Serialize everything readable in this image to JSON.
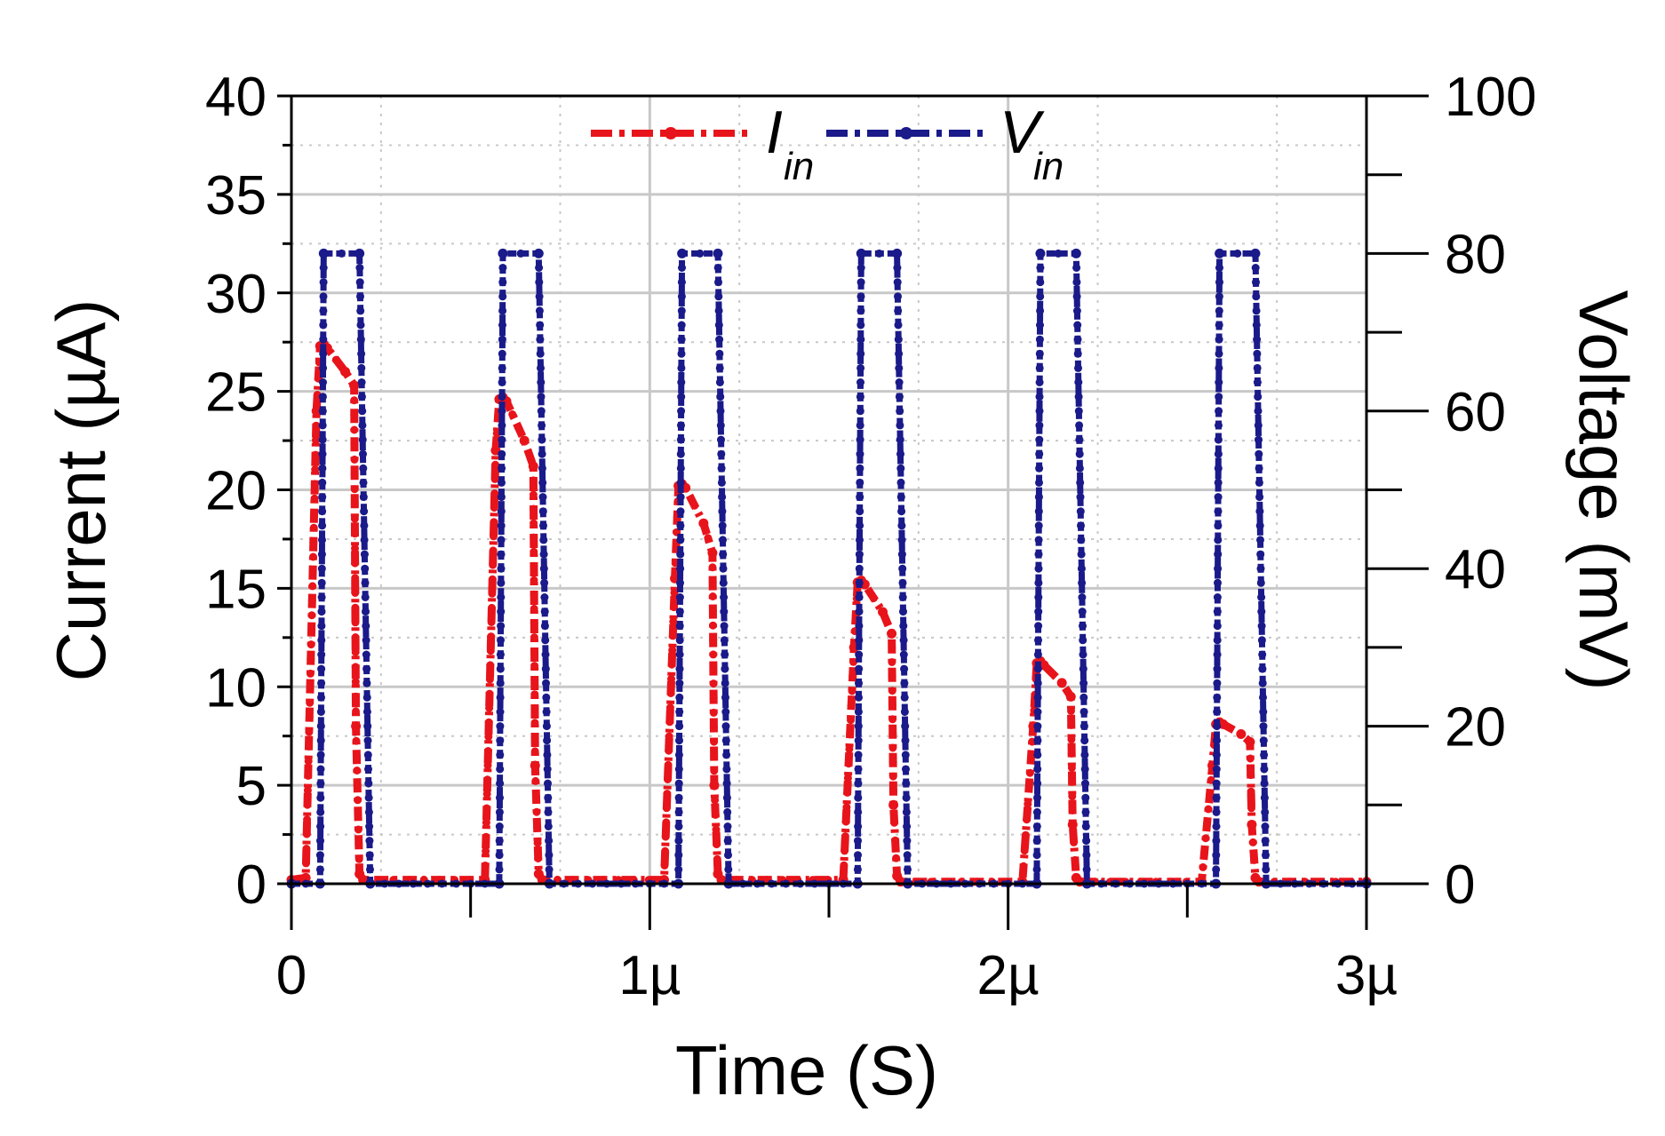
{
  "chart_data": {
    "type": "line",
    "xlabel": "Time (S)",
    "ylabel": "Current (µA)",
    "y2label": "Voltage (mV)",
    "xlim": [
      0,
      3e-06
    ],
    "ylim": [
      0,
      40
    ],
    "y2lim": [
      0,
      100
    ],
    "x_ticks": [
      0,
      1e-06,
      2e-06,
      3e-06
    ],
    "x_tick_labels": [
      "0",
      "1µ",
      "2µ",
      "3µ"
    ],
    "y_ticks": [
      0,
      5,
      10,
      15,
      20,
      25,
      30,
      35,
      40
    ],
    "y_tick_labels": [
      "0",
      "5",
      "10",
      "15",
      "20",
      "25",
      "30",
      "35",
      "40"
    ],
    "y2_ticks": [
      0,
      20,
      40,
      60,
      80,
      100
    ],
    "y2_tick_labels": [
      "0",
      "20",
      "40",
      "60",
      "80",
      "100"
    ],
    "grid": true,
    "legend_position": "top-center",
    "series": [
      {
        "name": "I",
        "name_subscript": "in",
        "axis": "left",
        "color": "#e8141b",
        "line_style": "dash-dot",
        "x": [
          0,
          4e-08,
          7e-08,
          8e-08,
          9e-08,
          1e-07,
          1.5e-07,
          1.75e-07,
          1.8e-07,
          1.9e-07,
          2e-07,
          5.4e-07,
          5.7e-07,
          5.8e-07,
          5.9e-07,
          6e-07,
          6.5e-07,
          6.75e-07,
          6.8e-07,
          6.9e-07,
          7e-07,
          1.04e-06,
          1.07e-06,
          1.08e-06,
          1.09e-06,
          1.1e-06,
          1.15e-06,
          1.175e-06,
          1.18e-06,
          1.19e-06,
          1.2e-06,
          1.54e-06,
          1.57e-06,
          1.58e-06,
          1.59e-06,
          1.6e-06,
          1.65e-06,
          1.675e-06,
          1.68e-06,
          1.69e-06,
          1.7e-06,
          2.04e-06,
          2.07e-06,
          2.08e-06,
          2.09e-06,
          2.1e-06,
          2.15e-06,
          2.175e-06,
          2.18e-06,
          2.19e-06,
          2.2e-06,
          2.54e-06,
          2.57e-06,
          2.58e-06,
          2.59e-06,
          2.6e-06,
          2.65e-06,
          2.675e-06,
          2.68e-06,
          2.69e-06,
          2.7e-06,
          3e-06
        ],
        "y": [
          0.2,
          0.3,
          24,
          27.3,
          27.4,
          27.2,
          26,
          25.3,
          8,
          0.5,
          0.2,
          0.2,
          22,
          24.6,
          24.7,
          24.5,
          22.5,
          21.2,
          6,
          0.5,
          0.2,
          0.2,
          15.5,
          20.2,
          20.3,
          20.1,
          18.3,
          16.8,
          5,
          0.5,
          0.2,
          0.2,
          12,
          15.3,
          15.4,
          15.2,
          13.8,
          12.7,
          4,
          0.4,
          0.1,
          0.1,
          8,
          11.2,
          11.3,
          11.1,
          10.2,
          9.5,
          3,
          0.3,
          0.1,
          0.1,
          6,
          8.1,
          8.2,
          8.1,
          7.6,
          7.2,
          3,
          0.3,
          0.1,
          0.1
        ]
      },
      {
        "name": "V",
        "name_subscript": "in",
        "axis": "right",
        "color": "#1a1a8a",
        "line_style": "dash-dot",
        "x": [
          0,
          8e-08,
          9e-08,
          1.9e-07,
          2.2e-07,
          5.8e-07,
          5.9e-07,
          6.9e-07,
          7.2e-07,
          1.08e-06,
          1.09e-06,
          1.19e-06,
          1.22e-06,
          1.58e-06,
          1.59e-06,
          1.69e-06,
          1.72e-06,
          2.08e-06,
          2.09e-06,
          2.19e-06,
          2.22e-06,
          2.58e-06,
          2.59e-06,
          2.69e-06,
          2.72e-06,
          3e-06
        ],
        "y": [
          0,
          0,
          80,
          80,
          0,
          0,
          80,
          80,
          0,
          0,
          80,
          80,
          0,
          0,
          80,
          80,
          0,
          0,
          80,
          80,
          0,
          0,
          80,
          80,
          0,
          0
        ]
      }
    ]
  }
}
